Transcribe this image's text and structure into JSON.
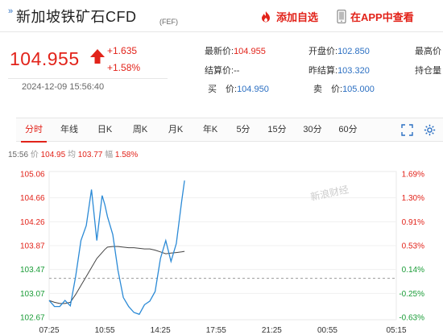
{
  "header": {
    "title": "新加坡铁矿石CFD",
    "code": "(FEF)",
    "add_favorite": "添加自选",
    "app_view": "在APP中查看"
  },
  "quote": {
    "price": "104.955",
    "change": "+1.635",
    "change_pct": "+1.58%",
    "time": "2024-12-09 15:56:40"
  },
  "fields": {
    "latest": {
      "label": "最新价:",
      "value": "104.955"
    },
    "settle": {
      "label": "结算价:",
      "value": "--"
    },
    "bid": {
      "label": "买　价:",
      "value": "104.950"
    },
    "open": {
      "label": "开盘价:",
      "value": "102.850"
    },
    "prev_settle": {
      "label": "昨结算:",
      "value": "103.320"
    },
    "ask": {
      "label": "卖　价:",
      "value": "105.000"
    },
    "high": {
      "label": "最高价",
      "value": ""
    },
    "position": {
      "label": "持仓量",
      "value": ""
    }
  },
  "tabs": [
    "分时",
    "年线",
    "日K",
    "周K",
    "月K",
    "年K",
    "5分",
    "15分",
    "30分",
    "60分"
  ],
  "active_tab": "分时",
  "info": {
    "time": "15:56",
    "price_label": "价",
    "price": "104.95",
    "avg_label": "均",
    "avg": "103.77",
    "amp_label": "幅",
    "amp": "1.58%"
  },
  "colors": {
    "up": "#e2231a",
    "down": "#1a9c37",
    "price_line": "#2b8ad6",
    "avg_line": "#444444",
    "accent": "#2b6fc2"
  },
  "watermark": "新浪财经",
  "chart_data": {
    "type": "line",
    "title": "",
    "xlabel": "",
    "ylabel": "",
    "x_ticks": [
      "07:25",
      "10:55",
      "14:25",
      "17:55",
      "21:25",
      "00:55",
      "05:15"
    ],
    "y_ticks": [
      "105.06",
      "104.66",
      "104.26",
      "103.87",
      "103.47",
      "103.07",
      "102.67"
    ],
    "y_pct_ticks": [
      "1.69%",
      "1.30%",
      "0.91%",
      "0.53%",
      "0.14%",
      "-0.25%",
      "-0.63%"
    ],
    "ylim": [
      102.67,
      105.06
    ],
    "prev_settle": 103.32,
    "series": [
      {
        "x": [
          "07:25",
          "07:45",
          "08:05",
          "08:25",
          "08:45",
          "09:05",
          "09:25",
          "09:45",
          "10:05",
          "10:25",
          "10:45",
          "10:55",
          "11:05",
          "11:25",
          "11:45",
          "12:05",
          "12:25",
          "12:45",
          "13:05",
          "13:25",
          "13:45",
          "14:05",
          "14:25",
          "14:45",
          "15:05",
          "15:25",
          "15:45",
          "15:56"
        ],
        "values": [
          102.95,
          102.85,
          102.85,
          102.95,
          102.86,
          103.35,
          103.95,
          104.2,
          104.8,
          103.95,
          104.7,
          104.55,
          104.35,
          104.05,
          103.45,
          103.0,
          102.85,
          102.75,
          102.72,
          102.88,
          102.94,
          103.1,
          103.65,
          103.95,
          103.6,
          103.9,
          104.6,
          104.95
        ]
      },
      {
        "x": [
          "07:25",
          "07:45",
          "08:05",
          "08:25",
          "08:45",
          "09:05",
          "09:25",
          "09:45",
          "10:05",
          "10:25",
          "10:45",
          "10:55",
          "11:05",
          "11:25",
          "11:45",
          "12:05",
          "12:25",
          "12:45",
          "13:05",
          "13:25",
          "13:45",
          "14:05",
          "14:25",
          "14:45",
          "15:05",
          "15:25",
          "15:45",
          "15:56"
        ],
        "values": [
          102.95,
          102.92,
          102.9,
          102.9,
          102.92,
          103.05,
          103.2,
          103.35,
          103.5,
          103.65,
          103.75,
          103.8,
          103.84,
          103.85,
          103.85,
          103.84,
          103.83,
          103.83,
          103.82,
          103.81,
          103.81,
          103.79,
          103.76,
          103.73,
          103.74,
          103.75,
          103.76,
          103.77
        ]
      }
    ]
  }
}
